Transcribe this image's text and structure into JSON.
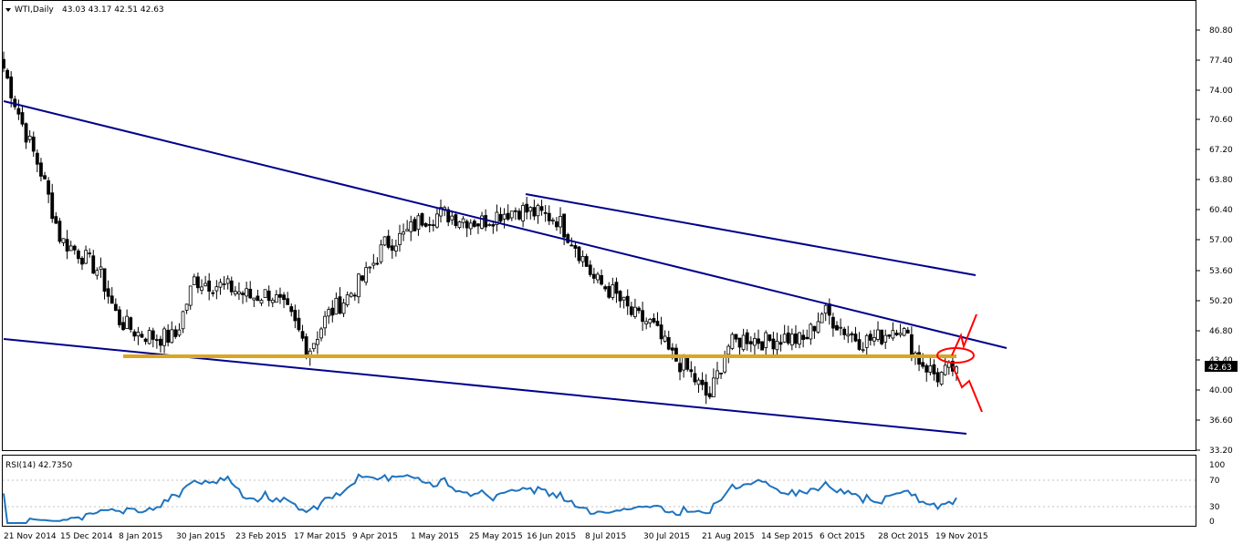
{
  "header": {
    "symbol": "WTI,Daily",
    "ohlc": "43.03 43.17 42.51 42.63",
    "menu_icon": "triangle-down-icon"
  },
  "price_axis": {
    "ticks": [
      "80.80",
      "77.40",
      "74.00",
      "70.60",
      "67.20",
      "63.80",
      "60.40",
      "57.00",
      "53.60",
      "50.20",
      "46.80",
      "43.40",
      "40.00",
      "36.60",
      "33.20"
    ],
    "current_price": "42.63"
  },
  "rsi": {
    "title": "RSI(14) 42.7350",
    "ticks": [
      "100",
      "70",
      "30",
      "0"
    ],
    "color": "#1e73be"
  },
  "date_axis": {
    "labels": [
      "21 Nov 2014",
      "15 Dec 2014",
      "8 Jan 2015",
      "30 Jan 2015",
      "23 Feb 2015",
      "17 Mar 2015",
      "9 Apr 2015",
      "1 May 2015",
      "25 May 2015",
      "16 Jun 2015",
      "8 Jul 2015",
      "30 Jul 2015",
      "21 Aug 2015",
      "14 Sep 2015",
      "6 Oct 2015",
      "28 Oct 2015",
      "19 Nov 2015"
    ]
  },
  "colors": {
    "candles": "#000000",
    "trendlines": "#00008b",
    "support": "#daa520",
    "annotation": "#ff0000",
    "grid": "#c0c0c0"
  },
  "chart_data": {
    "type": "candlestick",
    "title": "WTI,Daily",
    "ylim": [
      31.5,
      84.0
    ],
    "price_path": [
      [
        "21 Nov 2014",
        76.5
      ],
      [
        "1 Dec 2014",
        70.0
      ],
      [
        "8 Dec 2014",
        64.5
      ],
      [
        "15 Dec 2014",
        57.0
      ],
      [
        "22 Dec 2014",
        55.5
      ],
      [
        "30 Dec 2014",
        53.5
      ],
      [
        "8 Jan 2015",
        48.0
      ],
      [
        "15 Jan 2015",
        46.5
      ],
      [
        "22 Jan 2015",
        46.0
      ],
      [
        "30 Jan 2015",
        46.0
      ],
      [
        "3 Feb 2015",
        52.5
      ],
      [
        "10 Feb 2015",
        52.0
      ],
      [
        "17 Feb 2015",
        51.5
      ],
      [
        "23 Feb 2015",
        50.5
      ],
      [
        "3 Mar 2015",
        51.0
      ],
      [
        "10 Mar 2015",
        48.5
      ],
      [
        "17 Mar 2015",
        44.5
      ],
      [
        "24 Mar 2015",
        48.5
      ],
      [
        "1 Apr 2015",
        50.5
      ],
      [
        "9 Apr 2015",
        53.0
      ],
      [
        "16 Apr 2015",
        56.5
      ],
      [
        "24 Apr 2015",
        57.5
      ],
      [
        "1 May 2015",
        59.5
      ],
      [
        "8 May 2015",
        60.0
      ],
      [
        "15 May 2015",
        59.5
      ],
      [
        "25 May 2015",
        59.0
      ],
      [
        "1 Jun 2015",
        60.0
      ],
      [
        "8 Jun 2015",
        60.5
      ],
      [
        "16 Jun 2015",
        60.0
      ],
      [
        "23 Jun 2015",
        59.5
      ],
      [
        "1 Jul 2015",
        56.5
      ],
      [
        "8 Jul 2015",
        52.5
      ],
      [
        "15 Jul 2015",
        51.0
      ],
      [
        "22 Jul 2015",
        48.5
      ],
      [
        "30 Jul 2015",
        47.5
      ],
      [
        "7 Aug 2015",
        44.0
      ],
      [
        "14 Aug 2015",
        42.0
      ],
      [
        "21 Aug 2015",
        39.0
      ],
      [
        "28 Aug 2015",
        45.0
      ],
      [
        "4 Sep 2015",
        46.0
      ],
      [
        "14 Sep 2015",
        45.5
      ],
      [
        "21 Sep 2015",
        46.0
      ],
      [
        "28 Sep 2015",
        45.5
      ],
      [
        "6 Oct 2015",
        49.0
      ],
      [
        "13 Oct 2015",
        47.0
      ],
      [
        "21 Oct 2015",
        45.5
      ],
      [
        "28 Oct 2015",
        46.0
      ],
      [
        "3 Nov 2015",
        47.5
      ],
      [
        "10 Nov 2015",
        43.5
      ],
      [
        "19 Nov 2015",
        41.5
      ],
      [
        "27 Nov 2015",
        42.63
      ]
    ],
    "last_ohlc": {
      "open": 43.03,
      "high": 43.17,
      "low": 42.51,
      "close": 42.63
    },
    "support_level": 43.9,
    "rsi_period": 14,
    "rsi_last": 42.735,
    "rsi_ylim": [
      0,
      100
    ],
    "grid": false
  }
}
